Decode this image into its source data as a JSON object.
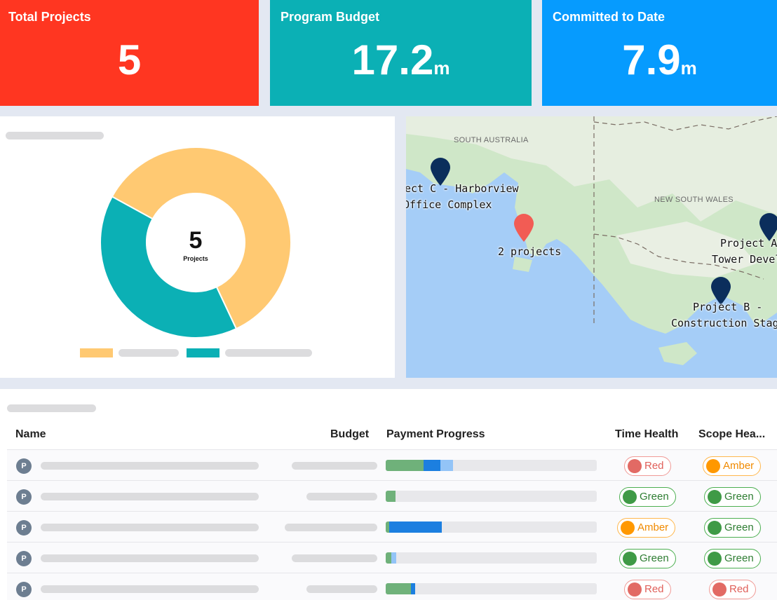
{
  "kpis": {
    "total_projects": {
      "title": "Total Projects",
      "value": "5",
      "unit": ""
    },
    "program_budget": {
      "title": "Program Budget",
      "value": "17.2",
      "unit": "m"
    },
    "committed": {
      "title": "Committed to Date",
      "value": "7.9",
      "unit": "m"
    }
  },
  "donut": {
    "center_value": "5",
    "center_label": "Projects",
    "chart_data": {
      "type": "pie",
      "values": [
        3,
        2
      ],
      "colors": [
        "#ffc972",
        "#0bb0b5"
      ]
    }
  },
  "map": {
    "regions": [
      "SOUTH AUSTRALIA",
      "NEW SOUTH WALES"
    ],
    "markers": [
      {
        "line1": "ect C - Harborview",
        "line2": "Office Complex",
        "color": "#0b2e5c"
      },
      {
        "line1": "2 projects",
        "line2": "",
        "color": "#f25c54"
      },
      {
        "line1": "Project A -",
        "line2": "Tower Devel",
        "color": "#0b2e5c"
      },
      {
        "line1": "Project B -",
        "line2": "Construction Stage",
        "color": "#0b2e5c"
      }
    ]
  },
  "table": {
    "headers": {
      "name": "Name",
      "budget": "Budget",
      "payment": "Payment Progress",
      "time": "Time Health",
      "scope": "Scope Hea..."
    },
    "avatar_letter": "P",
    "rows": [
      {
        "payment": [
          0.18,
          0.08,
          0.06
        ],
        "time": "Red",
        "scope": "Amber"
      },
      {
        "payment": [
          0.045,
          0,
          0
        ],
        "time": "Green",
        "scope": "Green"
      },
      {
        "payment": [
          0.015,
          0.25,
          0
        ],
        "time": "Amber",
        "scope": "Green"
      },
      {
        "payment": [
          0.025,
          0,
          0.025
        ],
        "time": "Green",
        "scope": "Green"
      },
      {
        "payment": [
          0.12,
          0.02,
          0
        ],
        "time": "Red",
        "scope": "Red"
      }
    ]
  }
}
